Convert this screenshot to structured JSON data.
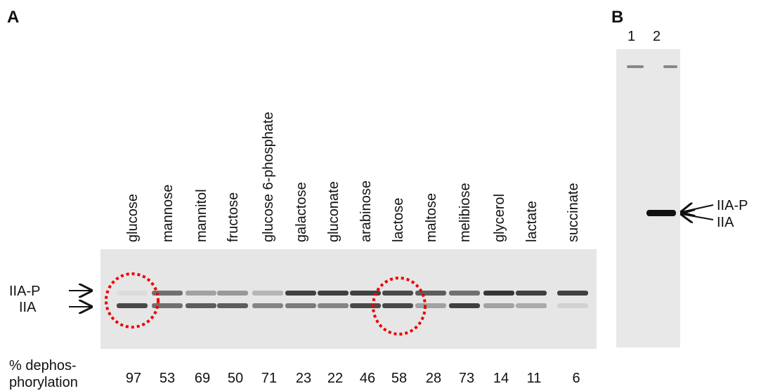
{
  "panel_a": {
    "label": "A",
    "lanes": [
      "glucose",
      "mannose",
      "mannitol",
      "fructose",
      "glucose 6-phosphate",
      "galactose",
      "gluconate",
      "arabinose",
      "lactose",
      "maltose",
      "melibiose",
      "glycerol",
      "lactate",
      "succinate"
    ],
    "band_labels": [
      "IIA-P",
      "IIA"
    ],
    "row_label": [
      "% dephos-",
      "phorylation"
    ],
    "dephosphorylation": [
      97,
      53,
      69,
      50,
      71,
      23,
      22,
      46,
      58,
      28,
      73,
      14,
      11,
      6
    ]
  },
  "panel_b": {
    "label": "B",
    "lanes": [
      "1",
      "2"
    ],
    "band_labels": [
      "IIA-P",
      "IIA"
    ]
  }
}
